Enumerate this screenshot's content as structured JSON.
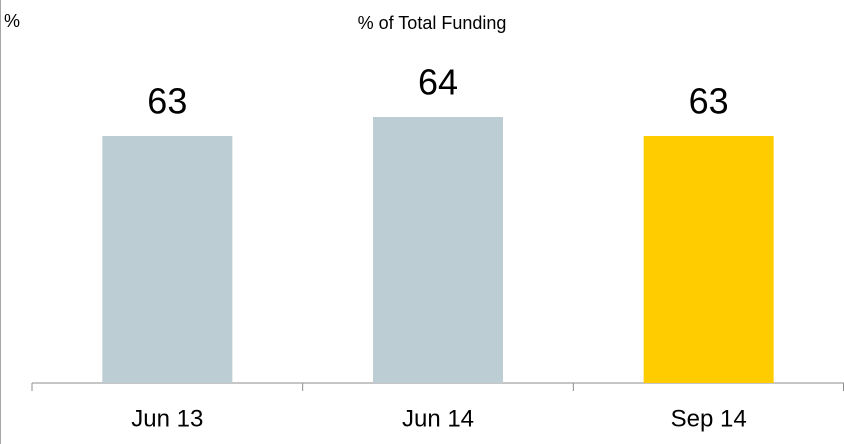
{
  "chart_data": {
    "type": "bar",
    "title": "% of Total Funding",
    "y_label": "%",
    "categories": [
      "Jun 13",
      "Jun 14",
      "Sep 14"
    ],
    "values": [
      63,
      64,
      63
    ],
    "colors": [
      "#bccdd3",
      "#bccdd3",
      "#ffcc00"
    ],
    "ylim": [
      50,
      68
    ],
    "grid": false
  }
}
